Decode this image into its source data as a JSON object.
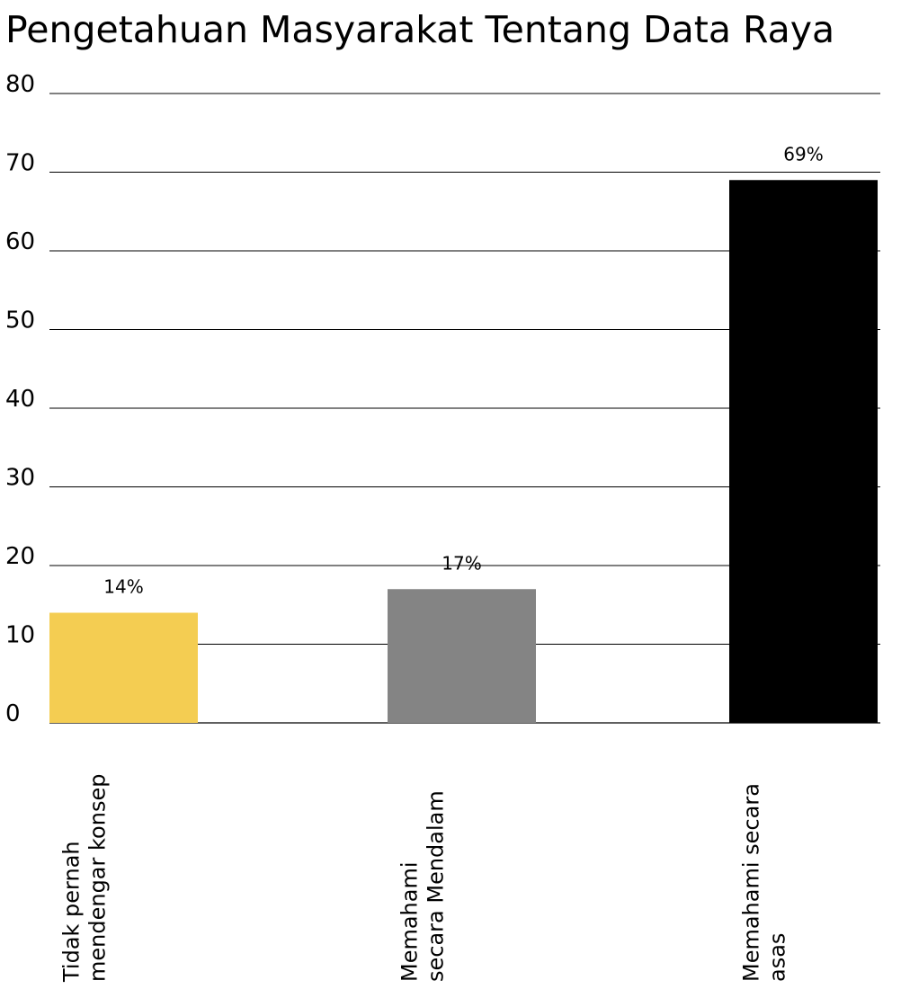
{
  "chart_data": {
    "type": "bar",
    "title": "Pengetahuan Masyarakat Tentang Data Raya",
    "xlabel": "",
    "ylabel": "",
    "ylim": [
      0,
      80
    ],
    "yticks": [
      0,
      10,
      20,
      30,
      40,
      50,
      60,
      70,
      80
    ],
    "grid": true,
    "legend": "none",
    "categories": [
      [
        "Tidak pernah",
        "mendengar konsep"
      ],
      [
        "Memahami",
        "secara Mendalam"
      ],
      [
        "Memahami secara",
        "asas"
      ]
    ],
    "values": [
      14,
      17,
      69
    ],
    "data_labels": [
      "14%",
      "17%",
      "69%"
    ],
    "colors": [
      "#f4cd52",
      "#848484",
      "#000000"
    ]
  }
}
